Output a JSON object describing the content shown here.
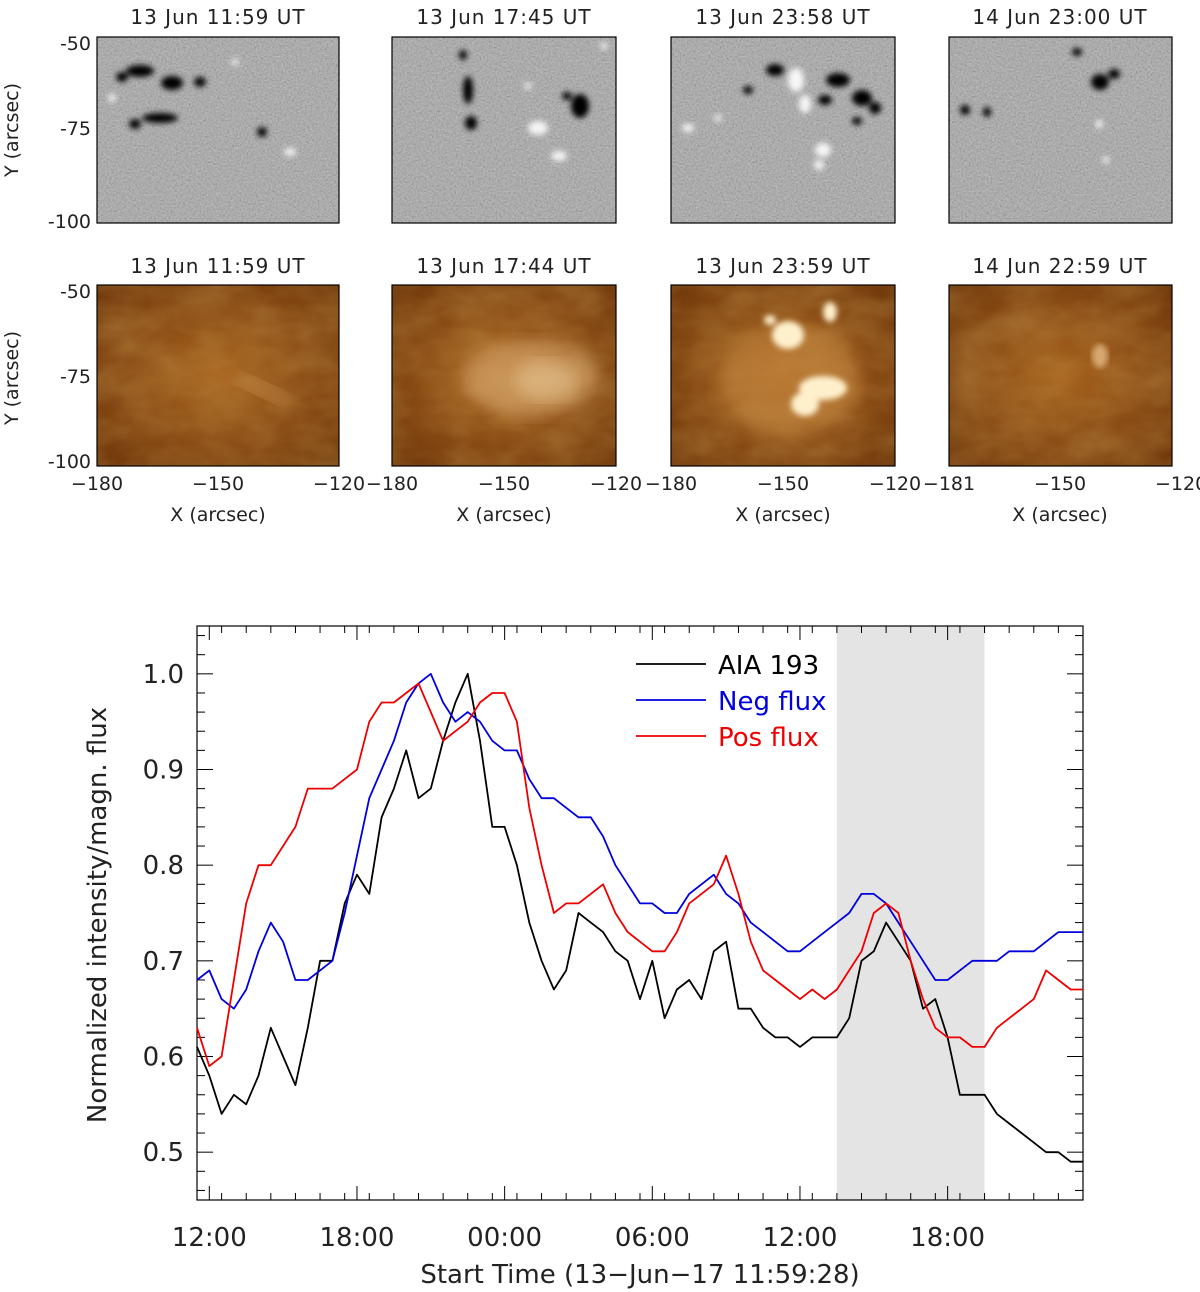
{
  "panels": {
    "hmi_titles": [
      "13 Jun 11:59 UT",
      "13 Jun 17:45 UT",
      "13 Jun 23:58 UT",
      "14 Jun 23:00 UT"
    ],
    "aia_titles": [
      "13 Jun 11:59 UT",
      "13 Jun 17:44 UT",
      "13 Jun 23:59 UT",
      "14 Jun 22:59 UT"
    ],
    "y_label": "Y (arcsec)",
    "x_label": "X (arcsec)",
    "y_ticks": [
      "-50",
      "-75",
      "-100"
    ],
    "x_ticks": [
      [
        "−180",
        "−150",
        "−120"
      ],
      [
        "−180",
        "−150",
        "−120"
      ],
      [
        "−180",
        "−150",
        "−120"
      ],
      [
        "−181",
        "−150",
        "−120"
      ]
    ],
    "hmi_colors": {
      "background": "#8c8c8c",
      "negative": "#000000",
      "positive": "#ffffff"
    },
    "aia_colors": {
      "dark": "#5a2a05",
      "mid": "#a8641f",
      "bright": "#fff2d0"
    }
  },
  "chart_data": {
    "type": "line",
    "xlabel": "Start Time (13−Jun−17 11:59:28)",
    "ylabel": "Normalized intensity/magn. flux",
    "x_unit": "hours since 13-Jun-17 12:00",
    "xlim": [
      -0.5,
      35.5
    ],
    "ylim": [
      0.45,
      1.05
    ],
    "x_ticks": [
      {
        "v": 0,
        "label": "12:00"
      },
      {
        "v": 6,
        "label": "18:00"
      },
      {
        "v": 12,
        "label": "00:00"
      },
      {
        "v": 18,
        "label": "06:00"
      },
      {
        "v": 24,
        "label": "12:00"
      },
      {
        "v": 30,
        "label": "18:00"
      }
    ],
    "y_ticks": [
      {
        "v": 0.5,
        "label": "0.5"
      },
      {
        "v": 0.6,
        "label": "0.6"
      },
      {
        "v": 0.7,
        "label": "0.7"
      },
      {
        "v": 0.8,
        "label": "0.8"
      },
      {
        "v": 0.9,
        "label": "0.9"
      },
      {
        "v": 1.0,
        "label": "1.0"
      }
    ],
    "shaded_interval": [
      25.5,
      31.5
    ],
    "legend_position": "top-right",
    "series": [
      {
        "name": "AIA 193",
        "color": "#000000",
        "x": [
          -0.5,
          0,
          0.5,
          1,
          1.5,
          2,
          2.5,
          3,
          3.5,
          4,
          4.5,
          5,
          5.5,
          6,
          6.5,
          7,
          7.5,
          8,
          8.5,
          9,
          9.5,
          10,
          10.5,
          11,
          11.5,
          12,
          12.5,
          13,
          13.5,
          14,
          14.5,
          15,
          15.5,
          16,
          16.5,
          17,
          17.5,
          18,
          18.5,
          19,
          19.5,
          20,
          20.5,
          21,
          21.5,
          22,
          22.5,
          23,
          23.5,
          24,
          24.5,
          25,
          25.5,
          26,
          26.5,
          27,
          27.5,
          28,
          28.5,
          29,
          29.5,
          30,
          30.5,
          31,
          31.5,
          32,
          32.5,
          33,
          33.5,
          34,
          34.5,
          35,
          35.5
        ],
        "y": [
          0.61,
          0.58,
          0.54,
          0.56,
          0.55,
          0.58,
          0.63,
          0.6,
          0.57,
          0.63,
          0.7,
          0.7,
          0.76,
          0.79,
          0.77,
          0.85,
          0.88,
          0.92,
          0.87,
          0.88,
          0.93,
          0.97,
          1.0,
          0.93,
          0.84,
          0.84,
          0.8,
          0.74,
          0.7,
          0.67,
          0.69,
          0.75,
          0.74,
          0.73,
          0.71,
          0.7,
          0.66,
          0.7,
          0.64,
          0.67,
          0.68,
          0.66,
          0.71,
          0.72,
          0.65,
          0.65,
          0.63,
          0.62,
          0.62,
          0.61,
          0.62,
          0.62,
          0.62,
          0.64,
          0.7,
          0.71,
          0.74,
          0.72,
          0.7,
          0.65,
          0.66,
          0.62,
          0.56,
          0.56,
          0.56,
          0.54,
          0.53,
          0.52,
          0.51,
          0.5,
          0.5,
          0.49,
          0.49
        ]
      },
      {
        "name": "Neg flux",
        "color": "#0000dd",
        "x": [
          -0.5,
          0,
          0.5,
          1,
          1.5,
          2,
          2.5,
          3,
          3.5,
          4,
          4.5,
          5,
          5.5,
          6,
          6.5,
          7,
          7.5,
          8,
          8.5,
          9,
          9.5,
          10,
          10.5,
          11,
          11.5,
          12,
          12.5,
          13,
          13.5,
          14,
          14.5,
          15,
          15.5,
          16,
          16.5,
          17,
          17.5,
          18,
          18.5,
          19,
          19.5,
          20,
          20.5,
          21,
          21.5,
          22,
          22.5,
          23,
          23.5,
          24,
          24.5,
          25,
          25.5,
          26,
          26.5,
          27,
          27.5,
          28,
          28.5,
          29,
          29.5,
          30,
          30.5,
          31,
          31.5,
          32,
          32.5,
          33,
          33.5,
          34,
          34.5,
          35,
          35.5
        ],
        "y": [
          0.68,
          0.69,
          0.66,
          0.65,
          0.67,
          0.71,
          0.74,
          0.72,
          0.68,
          0.68,
          0.69,
          0.7,
          0.75,
          0.81,
          0.87,
          0.9,
          0.93,
          0.97,
          0.99,
          1.0,
          0.97,
          0.95,
          0.96,
          0.95,
          0.93,
          0.92,
          0.92,
          0.89,
          0.87,
          0.87,
          0.86,
          0.85,
          0.85,
          0.83,
          0.8,
          0.78,
          0.76,
          0.76,
          0.75,
          0.75,
          0.77,
          0.78,
          0.79,
          0.77,
          0.76,
          0.74,
          0.73,
          0.72,
          0.71,
          0.71,
          0.72,
          0.73,
          0.74,
          0.75,
          0.77,
          0.77,
          0.76,
          0.74,
          0.72,
          0.7,
          0.68,
          0.68,
          0.69,
          0.7,
          0.7,
          0.7,
          0.71,
          0.71,
          0.71,
          0.72,
          0.73,
          0.73,
          0.73
        ]
      },
      {
        "name": "Pos flux",
        "color": "#ee0000",
        "x": [
          -0.5,
          0,
          0.5,
          1,
          1.5,
          2,
          2.5,
          3,
          3.5,
          4,
          4.5,
          5,
          5.5,
          6,
          6.5,
          7,
          7.5,
          8,
          8.5,
          9,
          9.5,
          10,
          10.5,
          11,
          11.5,
          12,
          12.5,
          13,
          13.5,
          14,
          14.5,
          15,
          15.5,
          16,
          16.5,
          17,
          17.5,
          18,
          18.5,
          19,
          19.5,
          20,
          20.5,
          21,
          21.5,
          22,
          22.5,
          23,
          23.5,
          24,
          24.5,
          25,
          25.5,
          26,
          26.5,
          27,
          27.5,
          28,
          28.5,
          29,
          29.5,
          30,
          30.5,
          31,
          31.5,
          32,
          32.5,
          33,
          33.5,
          34,
          34.5,
          35,
          35.5
        ],
        "y": [
          0.63,
          0.59,
          0.6,
          0.68,
          0.76,
          0.8,
          0.8,
          0.82,
          0.84,
          0.88,
          0.88,
          0.88,
          0.89,
          0.9,
          0.95,
          0.97,
          0.97,
          0.98,
          0.99,
          0.96,
          0.93,
          0.94,
          0.95,
          0.97,
          0.98,
          0.98,
          0.95,
          0.86,
          0.8,
          0.75,
          0.76,
          0.76,
          0.77,
          0.78,
          0.75,
          0.73,
          0.72,
          0.71,
          0.71,
          0.73,
          0.76,
          0.77,
          0.78,
          0.81,
          0.77,
          0.72,
          0.69,
          0.68,
          0.67,
          0.66,
          0.67,
          0.66,
          0.67,
          0.69,
          0.71,
          0.75,
          0.76,
          0.75,
          0.7,
          0.66,
          0.63,
          0.62,
          0.62,
          0.61,
          0.61,
          0.63,
          0.64,
          0.65,
          0.66,
          0.69,
          0.68,
          0.67,
          0.67
        ]
      }
    ]
  }
}
